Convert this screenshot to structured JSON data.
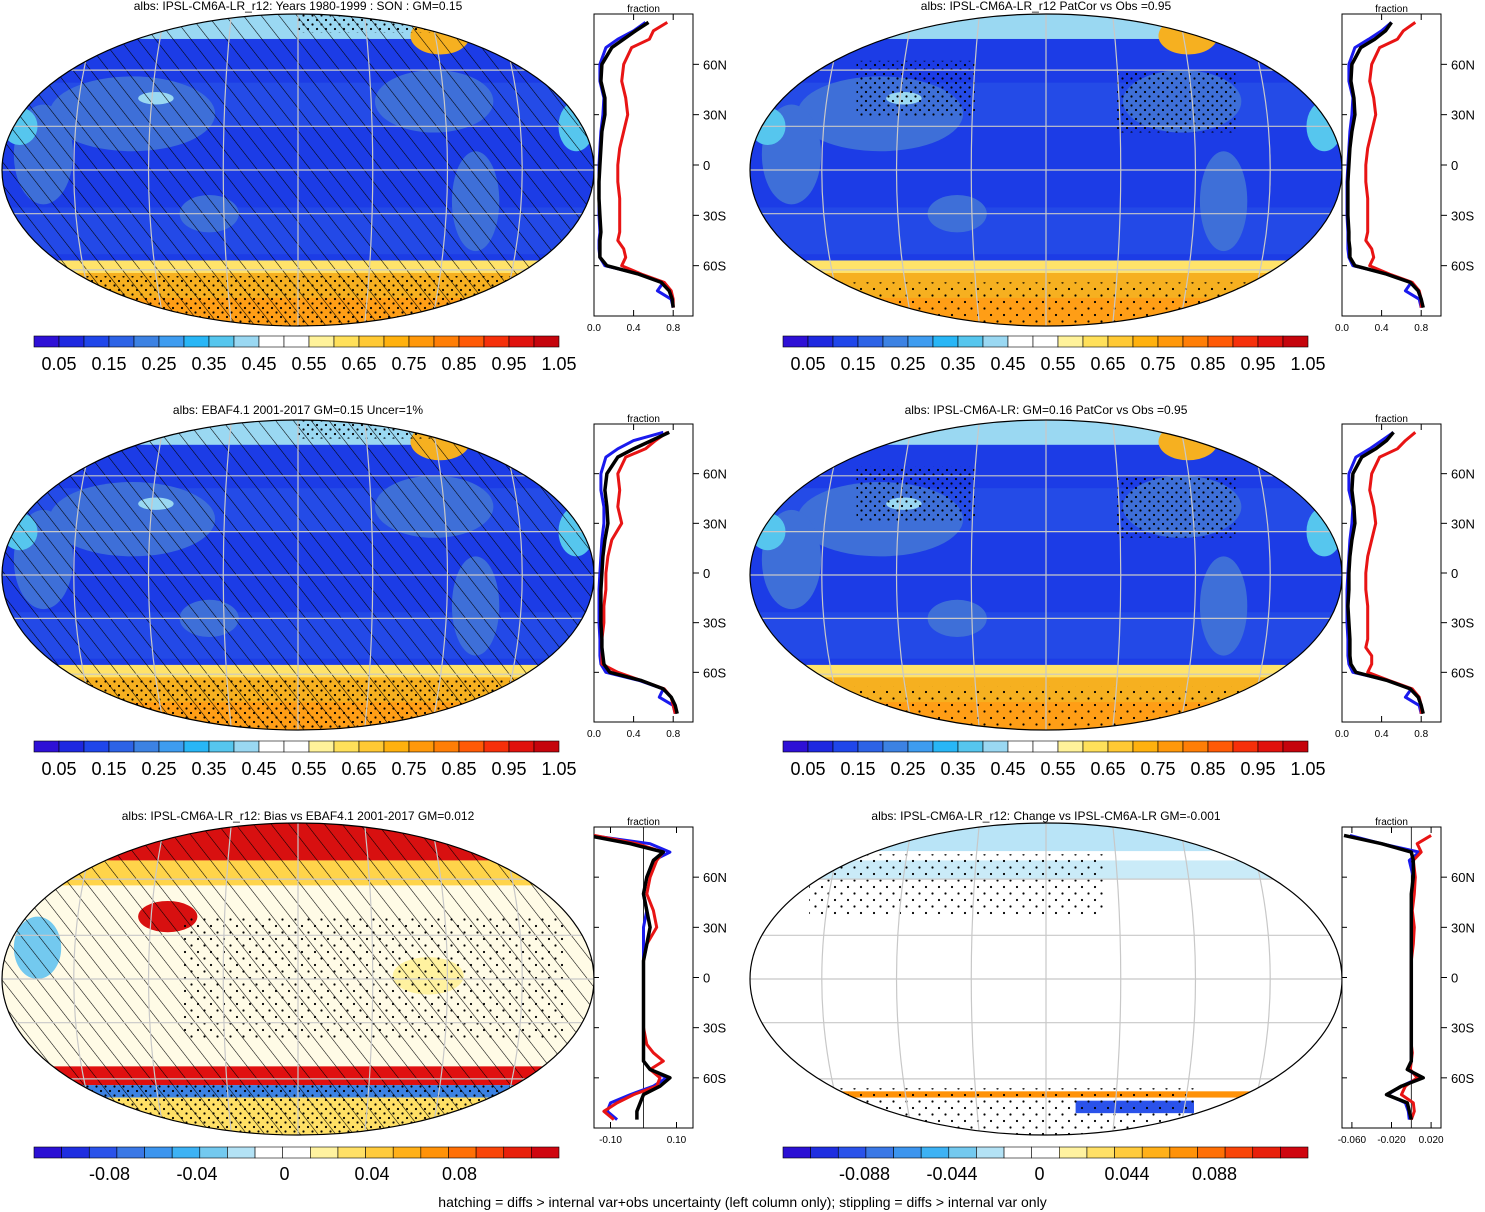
{
  "colors": {
    "albedo_scale": [
      "#2e10d6",
      "#1e28e0",
      "#1f46ea",
      "#2d63e6",
      "#3c82e3",
      "#3e9cf0",
      "#28b6f6",
      "#56c6ee",
      "#9ad8f2",
      "#ffffff",
      "#ffffff",
      "#fff29a",
      "#ffe05a",
      "#ffc934",
      "#ffb10e",
      "#ff980a",
      "#ff7e06",
      "#ff5a06",
      "#f6300a",
      "#e0120d",
      "#c5040c"
    ],
    "diff_scale": [
      "#2b10d4",
      "#1f2ee0",
      "#2a52ea",
      "#3a78e6",
      "#3c95ee",
      "#3db2f4",
      "#73c9ef",
      "#b3e2f5",
      "#ffffff",
      "#ffffff",
      "#fff2a0",
      "#ffe066",
      "#ffcb3c",
      "#ffb019",
      "#ff9208",
      "#ff6f05",
      "#f94508",
      "#e8200b",
      "#cf0610"
    ],
    "ocean_blue": "#1c3ce6",
    "ice_orange": "#f6b020",
    "grid_line": "#c8c8c8",
    "obs_line": "#e81414",
    "model_line": "#000000",
    "alt_line": "#1a1aee"
  },
  "panels": [
    {
      "id": "p1",
      "title": "albs: IPSL-CM6A-LR_r12: Years 1980-1999 : SON : GM=0.15",
      "kind": "albedo",
      "hatch": "dense",
      "stipple": "polar",
      "colorbar_labels": [
        "0.05",
        "0.15",
        "0.25",
        "0.35",
        "0.45",
        "0.55",
        "0.65",
        "0.75",
        "0.85",
        "0.95",
        "1.05"
      ]
    },
    {
      "id": "p2",
      "title": "albs: IPSL-CM6A-LR_r12 PatCor vs Obs =0.95",
      "kind": "albedo",
      "hatch": "none",
      "stipple": "land",
      "colorbar_labels": [
        "0.05",
        "0.15",
        "0.25",
        "0.35",
        "0.45",
        "0.55",
        "0.65",
        "0.75",
        "0.85",
        "0.95",
        "1.05"
      ]
    },
    {
      "id": "p3",
      "title": "albs: EBAF4.1 2001-2017 GM=0.15 Uncer=1%",
      "kind": "albedo",
      "hatch": "dense",
      "stipple": "polar",
      "colorbar_labels": [
        "0.05",
        "0.15",
        "0.25",
        "0.35",
        "0.45",
        "0.55",
        "0.65",
        "0.75",
        "0.85",
        "0.95",
        "1.05"
      ]
    },
    {
      "id": "p4",
      "title": "albs: IPSL-CM6A-LR: GM=0.16 PatCor vs Obs =0.95",
      "kind": "albedo",
      "hatch": "none",
      "stipple": "land",
      "colorbar_labels": [
        "0.05",
        "0.15",
        "0.25",
        "0.35",
        "0.45",
        "0.55",
        "0.65",
        "0.75",
        "0.85",
        "0.95",
        "1.05"
      ]
    },
    {
      "id": "p5",
      "title": "albs: IPSL-CM6A-LR_r12: Bias vs EBAF4.1 2001-2017  GM=0.012",
      "kind": "bias",
      "hatch": "dense",
      "stipple": "wide",
      "colorbar_labels": [
        "-0.08",
        "-0.04",
        "0",
        "0.04",
        "0.08"
      ]
    },
    {
      "id": "p6",
      "title": "albs: IPSL-CM6A-LR_r12: Change vs IPSL-CM6A-LR GM=-0.001",
      "kind": "change",
      "hatch": "none",
      "stipple": "sparse",
      "colorbar_labels": [
        "-0.088",
        "-0.044",
        "0",
        "0.044",
        "0.088"
      ]
    }
  ],
  "profile_axis_title": "fraction",
  "lat_labels": [
    "60N",
    "30N",
    "0",
    "30S",
    "60S"
  ],
  "chart_data": [
    {
      "type": "line",
      "title": "albs: IPSL-CM6A-LR_r12: Years 1980-1999 : SON : GM=0.15 (zonal mean)",
      "xlabel": "fraction",
      "xticks": [
        "0.0",
        "0.4",
        "0.8"
      ],
      "xlim": [
        0,
        1.0
      ],
      "ylim": [
        -90,
        90
      ],
      "yticks": [
        "60N",
        "30N",
        "0",
        "30S",
        "60S"
      ],
      "x": [
        -85,
        -80,
        -75,
        -70,
        -65,
        -60,
        -55,
        -50,
        -45,
        -40,
        -30,
        -20,
        -10,
        0,
        10,
        20,
        30,
        40,
        50,
        60,
        70,
        75,
        80,
        85
      ],
      "series": [
        {
          "color": "black",
          "values": [
            0.8,
            0.79,
            0.76,
            0.68,
            0.45,
            0.13,
            0.06,
            0.06,
            0.06,
            0.07,
            0.06,
            0.05,
            0.05,
            0.06,
            0.07,
            0.08,
            0.11,
            0.11,
            0.07,
            0.08,
            0.18,
            0.3,
            0.42,
            0.55
          ]
        },
        {
          "color": "red",
          "values": [
            0.8,
            0.8,
            0.78,
            0.71,
            0.48,
            0.28,
            0.32,
            0.3,
            0.24,
            0.26,
            0.26,
            0.26,
            0.24,
            0.24,
            0.26,
            0.3,
            0.34,
            0.32,
            0.28,
            0.3,
            0.38,
            0.56,
            0.6,
            0.74
          ]
        },
        {
          "color": "blue",
          "values": [
            0.8,
            0.78,
            0.64,
            0.7,
            0.47,
            0.11,
            0.06,
            0.05,
            0.05,
            0.06,
            0.05,
            0.05,
            0.05,
            0.05,
            0.06,
            0.07,
            0.09,
            0.1,
            0.06,
            0.06,
            0.12,
            0.24,
            0.4,
            0.52
          ]
        }
      ]
    },
    {
      "type": "line",
      "title": "albs: IPSL-CM6A-LR_r12 PatCor vs Obs =0.95 (zonal mean)",
      "xlabel": "fraction",
      "xticks": [
        "0.0",
        "0.4",
        "0.8"
      ],
      "xlim": [
        0,
        1.0
      ],
      "ylim": [
        -90,
        90
      ],
      "yticks": [
        "60N",
        "30N",
        "0",
        "30S",
        "60S"
      ],
      "x": [
        -85,
        -80,
        -75,
        -70,
        -65,
        -60,
        -55,
        -50,
        -45,
        -40,
        -30,
        -20,
        -10,
        0,
        10,
        20,
        30,
        40,
        50,
        60,
        70,
        75,
        80,
        85
      ],
      "series": [
        {
          "color": "black",
          "values": [
            0.82,
            0.8,
            0.77,
            0.69,
            0.45,
            0.13,
            0.08,
            0.08,
            0.07,
            0.07,
            0.06,
            0.06,
            0.06,
            0.07,
            0.08,
            0.1,
            0.13,
            0.12,
            0.09,
            0.1,
            0.19,
            0.33,
            0.44,
            0.5
          ]
        },
        {
          "color": "red",
          "values": [
            0.8,
            0.8,
            0.78,
            0.71,
            0.48,
            0.28,
            0.32,
            0.3,
            0.24,
            0.26,
            0.26,
            0.26,
            0.24,
            0.24,
            0.26,
            0.3,
            0.34,
            0.32,
            0.28,
            0.3,
            0.38,
            0.56,
            0.62,
            0.74
          ]
        },
        {
          "color": "blue",
          "values": [
            0.8,
            0.78,
            0.64,
            0.7,
            0.47,
            0.11,
            0.07,
            0.06,
            0.06,
            0.06,
            0.05,
            0.05,
            0.05,
            0.06,
            0.07,
            0.08,
            0.1,
            0.11,
            0.07,
            0.07,
            0.13,
            0.27,
            0.4,
            0.5
          ]
        }
      ]
    },
    {
      "type": "line",
      "title": "albs: EBAF4.1 2001-2017 GM=0.15 Uncer=1% (zonal mean)",
      "xlabel": "fraction",
      "xticks": [
        "0.0",
        "0.4",
        "0.8"
      ],
      "xlim": [
        0,
        1.0
      ],
      "ylim": [
        -90,
        90
      ],
      "yticks": [
        "60N",
        "30N",
        "0",
        "30S",
        "60S"
      ],
      "x": [
        -85,
        -80,
        -75,
        -70,
        -65,
        -60,
        -55,
        -50,
        -45,
        -40,
        -30,
        -20,
        -10,
        0,
        10,
        20,
        30,
        40,
        50,
        60,
        70,
        75,
        80,
        85
      ],
      "series": [
        {
          "color": "black",
          "values": [
            0.84,
            0.82,
            0.78,
            0.7,
            0.48,
            0.16,
            0.1,
            0.09,
            0.08,
            0.08,
            0.07,
            0.07,
            0.07,
            0.08,
            0.09,
            0.11,
            0.14,
            0.13,
            0.11,
            0.13,
            0.24,
            0.4,
            0.58,
            0.76
          ]
        },
        {
          "color": "red",
          "values": [
            0.82,
            0.8,
            0.78,
            0.71,
            0.48,
            0.24,
            0.08,
            0.08,
            0.08,
            0.08,
            0.1,
            0.1,
            0.12,
            0.12,
            0.14,
            0.18,
            0.28,
            0.24,
            0.26,
            0.24,
            0.32,
            0.52,
            0.62,
            0.74
          ]
        },
        {
          "color": "blue",
          "values": [
            0.82,
            0.8,
            0.66,
            0.7,
            0.46,
            0.12,
            0.07,
            0.06,
            0.06,
            0.06,
            0.05,
            0.05,
            0.05,
            0.06,
            0.07,
            0.08,
            0.1,
            0.1,
            0.07,
            0.07,
            0.12,
            0.24,
            0.4,
            0.7
          ]
        }
      ]
    },
    {
      "type": "line",
      "title": "albs: IPSL-CM6A-LR: GM=0.16 PatCor vs Obs =0.95 (zonal mean)",
      "xlabel": "fraction",
      "xticks": [
        "0.0",
        "0.4",
        "0.8"
      ],
      "xlim": [
        0,
        1.0
      ],
      "ylim": [
        -90,
        90
      ],
      "yticks": [
        "60N",
        "30N",
        "0",
        "30S",
        "60S"
      ],
      "x": [
        -85,
        -80,
        -75,
        -70,
        -65,
        -60,
        -55,
        -50,
        -45,
        -40,
        -30,
        -20,
        -10,
        0,
        10,
        20,
        30,
        40,
        50,
        60,
        70,
        75,
        80,
        85
      ],
      "series": [
        {
          "color": "black",
          "values": [
            0.82,
            0.8,
            0.77,
            0.69,
            0.46,
            0.14,
            0.09,
            0.08,
            0.08,
            0.08,
            0.07,
            0.06,
            0.07,
            0.07,
            0.08,
            0.1,
            0.13,
            0.12,
            0.1,
            0.11,
            0.2,
            0.34,
            0.45,
            0.52
          ]
        },
        {
          "color": "red",
          "values": [
            0.8,
            0.8,
            0.78,
            0.71,
            0.48,
            0.26,
            0.3,
            0.3,
            0.24,
            0.26,
            0.26,
            0.26,
            0.24,
            0.24,
            0.26,
            0.3,
            0.34,
            0.32,
            0.28,
            0.3,
            0.38,
            0.56,
            0.64,
            0.74
          ]
        },
        {
          "color": "blue",
          "values": [
            0.8,
            0.78,
            0.64,
            0.7,
            0.47,
            0.11,
            0.07,
            0.06,
            0.06,
            0.06,
            0.05,
            0.05,
            0.05,
            0.06,
            0.07,
            0.08,
            0.1,
            0.11,
            0.07,
            0.07,
            0.14,
            0.28,
            0.4,
            0.52
          ]
        }
      ]
    },
    {
      "type": "line",
      "title": "albs: IPSL-CM6A-LR_r12: Bias vs EBAF4.1 2001-2017  GM=0.012 (zonal mean)",
      "xlabel": "fraction",
      "xticks": [
        "-0.10",
        "0.10"
      ],
      "xlim": [
        -0.15,
        0.15
      ],
      "ylim": [
        -90,
        90
      ],
      "yticks": [
        "60N",
        "30N",
        "0",
        "30S",
        "60S"
      ],
      "x": [
        -85,
        -80,
        -75,
        -70,
        -65,
        -60,
        -55,
        -50,
        -45,
        -40,
        -30,
        -20,
        -10,
        0,
        10,
        20,
        30,
        40,
        50,
        60,
        70,
        75,
        80,
        85
      ],
      "series": [
        {
          "color": "black",
          "values": [
            -0.02,
            -0.02,
            -0.01,
            0.0,
            0.05,
            0.08,
            0.02,
            0.0,
            0.0,
            0.0,
            0.0,
            0.0,
            0.0,
            0.0,
            0.0,
            0.01,
            0.02,
            0.01,
            0.0,
            0.01,
            0.03,
            0.06,
            -0.04,
            -0.17
          ]
        },
        {
          "color": "red",
          "values": [
            -0.09,
            -0.12,
            -0.08,
            -0.03,
            0.04,
            0.05,
            0.02,
            0.06,
            0.03,
            0.01,
            0.0,
            0.0,
            0.0,
            0.0,
            0.0,
            0.01,
            0.04,
            0.03,
            0.01,
            0.02,
            0.04,
            0.06,
            -0.02,
            -0.15
          ]
        },
        {
          "color": "blue",
          "values": [
            -0.08,
            -0.11,
            -0.1,
            -0.04,
            0.03,
            0.07,
            0.02,
            0.0,
            0.0,
            0.0,
            0.0,
            0.0,
            0.0,
            0.0,
            0.0,
            0.0,
            0.0,
            0.01,
            0.0,
            0.01,
            0.03,
            0.08,
            0.02,
            -0.16
          ]
        }
      ]
    },
    {
      "type": "line",
      "title": "albs: IPSL-CM6A-LR_r12: Change vs IPSL-CM6A-LR GM=-0.001 (zonal mean)",
      "xlabel": "fraction",
      "xticks": [
        "-0.060",
        "-0.020",
        "0.020"
      ],
      "xlim": [
        -0.07,
        0.03
      ],
      "ylim": [
        -90,
        90
      ],
      "yticks": [
        "60N",
        "30N",
        "0",
        "30S",
        "60S"
      ],
      "x": [
        -85,
        -80,
        -75,
        -70,
        -65,
        -60,
        -55,
        -50,
        -45,
        -40,
        -30,
        -20,
        -10,
        0,
        10,
        20,
        30,
        40,
        50,
        60,
        70,
        75,
        80,
        85
      ],
      "series": [
        {
          "color": "black",
          "values": [
            0.0,
            -0.002,
            -0.004,
            -0.025,
            -0.01,
            0.012,
            -0.004,
            0.0,
            0.0,
            0.0,
            0.0,
            0.0,
            0.0,
            0.0,
            0.0,
            0.0,
            0.0,
            0.0,
            0.0,
            0.002,
            0.002,
            0.0,
            -0.03,
            -0.068
          ]
        },
        {
          "color": "red",
          "values": [
            0.0,
            0.003,
            0.002,
            -0.01,
            -0.006,
            0.006,
            -0.001,
            0.0,
            0.001,
            0.0,
            0.0,
            0.0,
            0.0,
            0.0,
            0.0,
            0.002,
            0.003,
            0.001,
            0.003,
            0.004,
            0.002,
            0.01,
            0.006,
            0.02
          ]
        },
        {
          "color": "blue",
          "values": [
            -0.002,
            -0.003,
            -0.006,
            -0.024,
            -0.01,
            0.008,
            -0.003,
            0.0,
            0.0,
            0.0,
            0.0,
            0.0,
            0.0,
            0.0,
            0.0,
            0.0,
            0.0,
            0.0,
            0.001,
            0.002,
            -0.002,
            0.008,
            -0.03,
            -0.062
          ]
        }
      ]
    }
  ],
  "footer": "hatching = diffs > internal var+obs uncertainty (left column only); stippling = diffs > internal var only"
}
